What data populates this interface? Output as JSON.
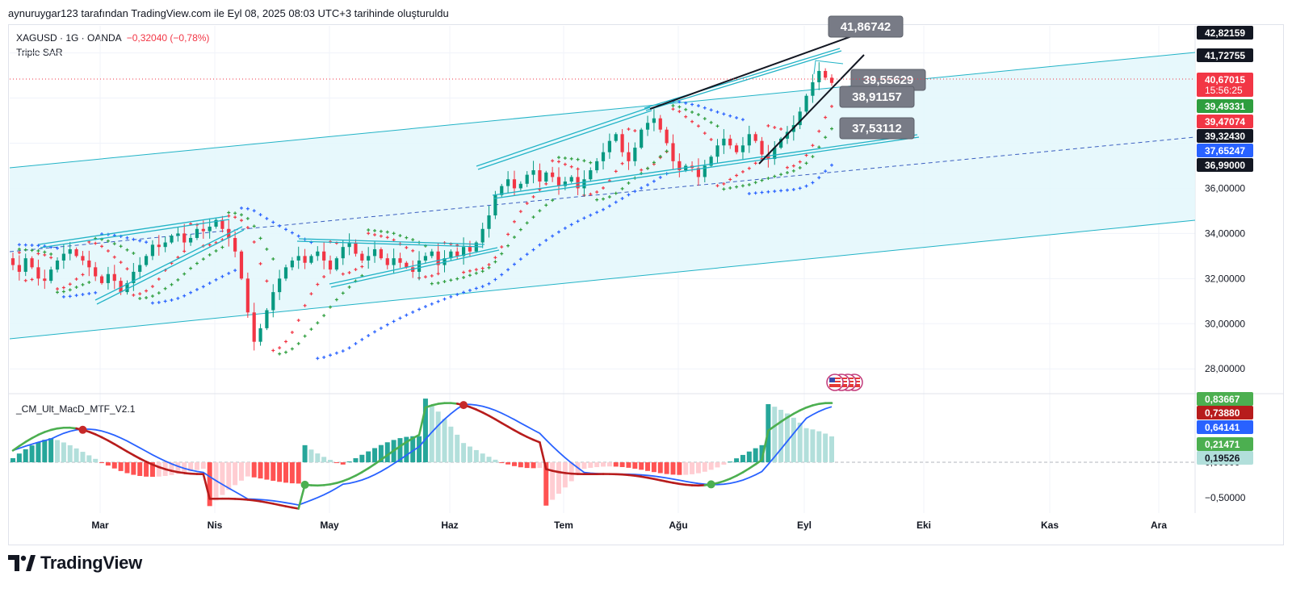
{
  "header": {
    "attribution": "aynuruygar123 tarafından TradingView.com ile Eyl 08, 2025 08:03 UTC+3 tarihinde oluşturuldu"
  },
  "symbol": {
    "title": "XAGUSD · 1G · OANDA",
    "change": "−0,32040 (−0,78%)"
  },
  "indicators": {
    "main": "Triple SAR",
    "lower": "_CM_Ult_MacD_MTF_V2.1"
  },
  "brand": {
    "name": "TradingView"
  },
  "colors": {
    "up": "#089981",
    "down": "#f23645",
    "channel": "#22b3c6",
    "channel_fill": "#e3f7fb",
    "sar_red": "#f23645",
    "sar_green": "#2e9e3e",
    "sar_blue": "#2962ff",
    "macd_green": "#4caf50",
    "macd_red": "#b71c1c",
    "signal": "#2962ff"
  },
  "chart_data": [
    {
      "type": "candlestick",
      "name": "XAGUSD",
      "x_axis": {
        "tick_labels": [
          "Mar",
          "Nis",
          "May",
          "Haz",
          "Tem",
          "Ağu",
          "Eyl",
          "Eki",
          "Kas",
          "Ara"
        ]
      },
      "y_axis": {
        "tick_labels": [
          "28,00000",
          "30,00000",
          "32,00000",
          "34,00000",
          "36,00000"
        ],
        "range": [
          26.9,
          43.2
        ]
      },
      "price_tags": [
        {
          "value": 42.82159,
          "text": "42,82159",
          "color": "#131722"
        },
        {
          "value": 41.72755,
          "text": "41,72755",
          "color": "#131722"
        },
        {
          "value": 40.67015,
          "text": "40,67015",
          "sub": "15:56:25",
          "color": "#f23645"
        },
        {
          "value": 39.49331,
          "text": "39,49331",
          "color": "#2e9e3e"
        },
        {
          "value": 39.47074,
          "text": "39,47074",
          "color": "#f23645"
        },
        {
          "value": 39.3243,
          "text": "39,32430",
          "color": "#131722"
        },
        {
          "value": 37.65247,
          "text": "37,65247",
          "color": "#2962ff"
        },
        {
          "value": 36.99,
          "text": "36,99000",
          "color": "#131722"
        }
      ],
      "callouts": [
        {
          "text": "41,86742",
          "value": 41.86742
        },
        {
          "text": "39,55629",
          "value": 39.55629
        },
        {
          "text": "38,91157",
          "value": 38.91157
        },
        {
          "text": "37,53112",
          "value": 37.53112
        }
      ],
      "closes": [
        32.6,
        32.3,
        32.9,
        32.5,
        32.0,
        31.9,
        32.4,
        32.8,
        33.1,
        33.3,
        33.0,
        32.8,
        32.5,
        32.1,
        31.8,
        32.2,
        31.9,
        31.4,
        31.8,
        32.3,
        32.6,
        33.0,
        33.5,
        33.4,
        33.6,
        33.9,
        34.0,
        33.6,
        33.8,
        34.2,
        34.1,
        34.3,
        34.6,
        34.2,
        33.8,
        33.2,
        32.0,
        30.5,
        29.2,
        29.8,
        30.6,
        31.4,
        32.0,
        32.5,
        32.8,
        33.0,
        32.7,
        33.0,
        33.2,
        32.8,
        32.4,
        32.9,
        33.4,
        33.6,
        33.1,
        32.8,
        33.0,
        33.3,
        32.9,
        32.6,
        32.9,
        32.7,
        32.5,
        32.3,
        32.8,
        33.0,
        33.2,
        32.6,
        32.9,
        33.2,
        33.0,
        33.4,
        33.2,
        33.6,
        34.2,
        34.8,
        35.7,
        36.1,
        36.4,
        36.0,
        36.2,
        36.6,
        36.8,
        36.3,
        36.7,
        36.5,
        36.1,
        36.3,
        36.5,
        36.0,
        36.4,
        36.8,
        37.2,
        37.6,
        38.1,
        38.4,
        37.6,
        37.2,
        37.8,
        38.6,
        38.9,
        39.1,
        38.6,
        38.0,
        37.2,
        36.8,
        37.0,
        36.9,
        36.5,
        37.0,
        37.4,
        37.9,
        38.2,
        37.9,
        37.6,
        37.9,
        38.4,
        38.1,
        37.5,
        37.3,
        37.8,
        38.2,
        38.5,
        38.8,
        39.4,
        40.1,
        40.7,
        41.2,
        40.9,
        40.67
      ]
    },
    {
      "type": "line",
      "name": "_CM_Ult_MacD_MTF_V2.1",
      "y_axis": {
        "tick_labels": [
          "0,00000",
          "−0,50000"
        ],
        "range": [
          -0.72,
          0.95
        ]
      },
      "price_tags": [
        {
          "value": 0.83667,
          "text": "0,83667",
          "color": "#4caf50"
        },
        {
          "value": 0.7388,
          "text": "0,73880",
          "color": "#b71c1c"
        },
        {
          "value": 0.64141,
          "text": "0,64141",
          "color": "#2962ff"
        },
        {
          "value": 0.21471,
          "text": "0,21471",
          "color": "#4caf50"
        },
        {
          "value": 0.19526,
          "text": "0,19526",
          "color": "#b2dfdb"
        }
      ]
    }
  ]
}
